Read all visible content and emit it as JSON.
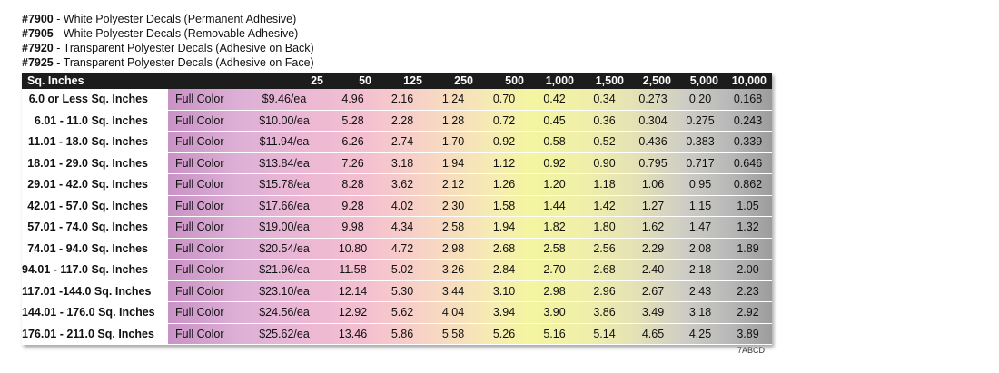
{
  "heading": [
    {
      "code": "#7900",
      "text": " - White Polyester Decals (Permanent Adhesive)"
    },
    {
      "code": "#7905",
      "text": " - White Polyester Decals (Removable Adhesive)"
    },
    {
      "code": "#7920",
      "text": " - Transparent Polyester Decals (Adhesive on Back)"
    },
    {
      "code": "#7925",
      "text": " - Transparent Polyester Decals (Adhesive on Face)"
    }
  ],
  "table": {
    "header": [
      "Sq. Inches",
      "25",
      "50",
      "125",
      "250",
      "500",
      "1,000",
      "1,500",
      "2,500",
      "5,000",
      "10,000"
    ],
    "rows": [
      {
        "size": "6.0 or Less Sq. Inches",
        "type": "Full Color",
        "prices": [
          "$9.46/ea",
          "4.96",
          "2.16",
          "1.24",
          "0.70",
          "0.42",
          "0.34",
          "0.273",
          "0.20",
          "0.168"
        ]
      },
      {
        "size": "6.01 - 11.0 Sq. Inches",
        "type": "Full Color",
        "prices": [
          "$10.00/ea",
          "5.28",
          "2.28",
          "1.28",
          "0.72",
          "0.45",
          "0.36",
          "0.304",
          "0.275",
          "0.243"
        ]
      },
      {
        "size": "11.01 - 18.0 Sq. Inches",
        "type": "Full Color",
        "prices": [
          "$11.94/ea",
          "6.26",
          "2.74",
          "1.70",
          "0.92",
          "0.58",
          "0.52",
          "0.436",
          "0.383",
          "0.339"
        ]
      },
      {
        "size": "18.01 - 29.0 Sq. Inches",
        "type": "Full Color",
        "prices": [
          "$13.84/ea",
          "7.26",
          "3.18",
          "1.94",
          "1.12",
          "0.92",
          "0.90",
          "0.795",
          "0.717",
          "0.646"
        ]
      },
      {
        "size": "29.01 - 42.0 Sq. Inches",
        "type": "Full Color",
        "prices": [
          "$15.78/ea",
          "8.28",
          "3.62",
          "2.12",
          "1.26",
          "1.20",
          "1.18",
          "1.06",
          "0.95",
          "0.862"
        ]
      },
      {
        "size": "42.01 - 57.0 Sq. Inches",
        "type": "Full Color",
        "prices": [
          "$17.66/ea",
          "9.28",
          "4.02",
          "2.30",
          "1.58",
          "1.44",
          "1.42",
          "1.27",
          "1.15",
          "1.05"
        ]
      },
      {
        "size": "57.01 - 74.0 Sq. Inches",
        "type": "Full Color",
        "prices": [
          "$19.00/ea",
          "9.98",
          "4.34",
          "2.58",
          "1.94",
          "1.82",
          "1.80",
          "1.62",
          "1.47",
          "1.32"
        ]
      },
      {
        "size": "74.01 - 94.0 Sq. Inches",
        "type": "Full Color",
        "prices": [
          "$20.54/ea",
          "10.80",
          "4.72",
          "2.98",
          "2.68",
          "2.58",
          "2.56",
          "2.29",
          "2.08",
          "1.89"
        ]
      },
      {
        "size": "94.01 - 117.0  Sq. Inches",
        "type": "Full Color",
        "prices": [
          "$21.96/ea",
          "11.58",
          "5.02",
          "3.26",
          "2.84",
          "2.70",
          "2.68",
          "2.40",
          "2.18",
          "2.00"
        ]
      },
      {
        "size": "117.01 -144.0 Sq. Inches",
        "type": "Full Color",
        "prices": [
          "$23.10/ea",
          "12.14",
          "5.30",
          "3.44",
          "3.10",
          "2.98",
          "2.96",
          "2.67",
          "2.43",
          "2.23"
        ]
      },
      {
        "size": "144.01 - 176.0 Sq. Inches",
        "type": "Full Color",
        "prices": [
          "$24.56/ea",
          "12.92",
          "5.62",
          "4.04",
          "3.94",
          "3.90",
          "3.86",
          "3.49",
          "3.18",
          "2.92"
        ]
      },
      {
        "size": "176.01 - 211.0 Sq. Inches",
        "type": "Full Color",
        "prices": [
          "$25.62/ea",
          "13.46",
          "5.86",
          "5.58",
          "5.26",
          "5.16",
          "5.14",
          "4.65",
          "4.25",
          "3.89"
        ]
      }
    ]
  },
  "footer_code": "7ABCD"
}
